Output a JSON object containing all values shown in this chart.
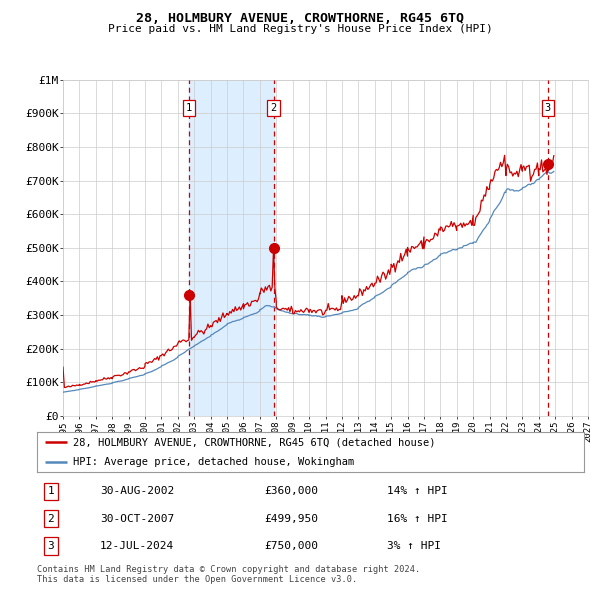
{
  "title": "28, HOLMBURY AVENUE, CROWTHORNE, RG45 6TQ",
  "subtitle": "Price paid vs. HM Land Registry's House Price Index (HPI)",
  "legend_line1": "28, HOLMBURY AVENUE, CROWTHORNE, RG45 6TQ (detached house)",
  "legend_line2": "HPI: Average price, detached house, Wokingham",
  "footer1": "Contains HM Land Registry data © Crown copyright and database right 2024.",
  "footer2": "This data is licensed under the Open Government Licence v3.0.",
  "transactions": [
    {
      "num": 1,
      "date": "30-AUG-2002",
      "price": 360000,
      "hpi_pct": "14% ↑ HPI",
      "year": 2002.667
    },
    {
      "num": 2,
      "date": "30-OCT-2007",
      "price": 499950,
      "hpi_pct": "16% ↑ HPI",
      "year": 2007.833
    },
    {
      "num": 3,
      "date": "12-JUL-2024",
      "price": 750000,
      "hpi_pct": "3% ↑ HPI",
      "year": 2024.536
    }
  ],
  "xmin_year": 1995.0,
  "xmax_year": 2027.0,
  "ymin": 0,
  "ymax": 1000000,
  "yticks": [
    0,
    100000,
    200000,
    300000,
    400000,
    500000,
    600000,
    700000,
    800000,
    900000,
    1000000
  ],
  "ytick_labels": [
    "£0",
    "£100K",
    "£200K",
    "£300K",
    "£400K",
    "£500K",
    "£600K",
    "£700K",
    "£800K",
    "£900K",
    "£1M"
  ],
  "xtick_years": [
    1995,
    1996,
    1997,
    1998,
    1999,
    2000,
    2001,
    2002,
    2003,
    2004,
    2005,
    2006,
    2007,
    2008,
    2009,
    2010,
    2011,
    2012,
    2013,
    2014,
    2015,
    2016,
    2017,
    2018,
    2019,
    2020,
    2021,
    2022,
    2023,
    2024,
    2025,
    2026,
    2027
  ],
  "red_line_color": "#cc0000",
  "blue_line_color": "#5588bb",
  "shade_color": "#ddeeff",
  "dot_color": "#cc0000",
  "vline_color": "#cc0000",
  "bg_color": "#ffffff",
  "grid_color": "#cccccc",
  "future_hatch_color": "#aaaaaa",
  "data_end_year": 2024.9,
  "future_start_year": 2025.0
}
